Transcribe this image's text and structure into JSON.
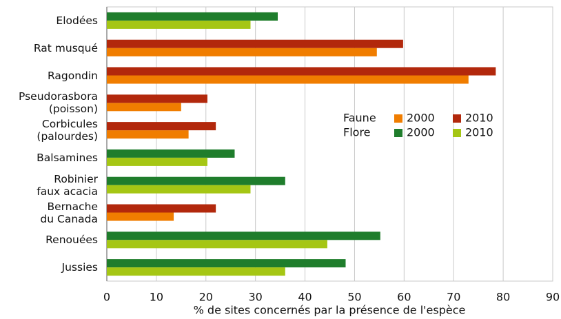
{
  "chart_data": {
    "type": "bar",
    "orientation": "horizontal",
    "categories": [
      "Elodées",
      "Rat musqué",
      "Ragondin",
      "Pseudorasbora\n(poisson)",
      "Corbicules\n(palourdes)",
      "Balsamines",
      "Robinier\nfaux acacia",
      "Bernache\ndu Canada",
      "Renouées",
      "Jussies"
    ],
    "legend_groups": [
      "Faune",
      "Flore"
    ],
    "series": [
      {
        "name": "2000",
        "color": "#f07d00",
        "values": [
          null,
          54.5,
          73,
          15,
          16.5,
          null,
          null,
          13.5,
          null,
          null
        ]
      },
      {
        "name": "2010",
        "color": "#b2280c",
        "values": [
          null,
          59.8,
          78.5,
          20.3,
          22,
          null,
          null,
          22,
          null,
          null
        ]
      },
      {
        "name": "2000",
        "color": "#1f7d2c",
        "values": [
          34.5,
          null,
          null,
          null,
          null,
          25.8,
          36,
          null,
          55.2,
          48.2
        ]
      },
      {
        "name": "2010",
        "color": "#a5c614",
        "values": [
          29,
          null,
          null,
          null,
          null,
          20.3,
          29,
          null,
          44.5,
          36
        ]
      }
    ],
    "x_label": "% de sites concernés par la présence de l'espèce",
    "xlim": [
      0,
      90
    ],
    "xticks": [
      0,
      10,
      20,
      30,
      40,
      50,
      60,
      70,
      80,
      90
    ],
    "grid": true
  }
}
